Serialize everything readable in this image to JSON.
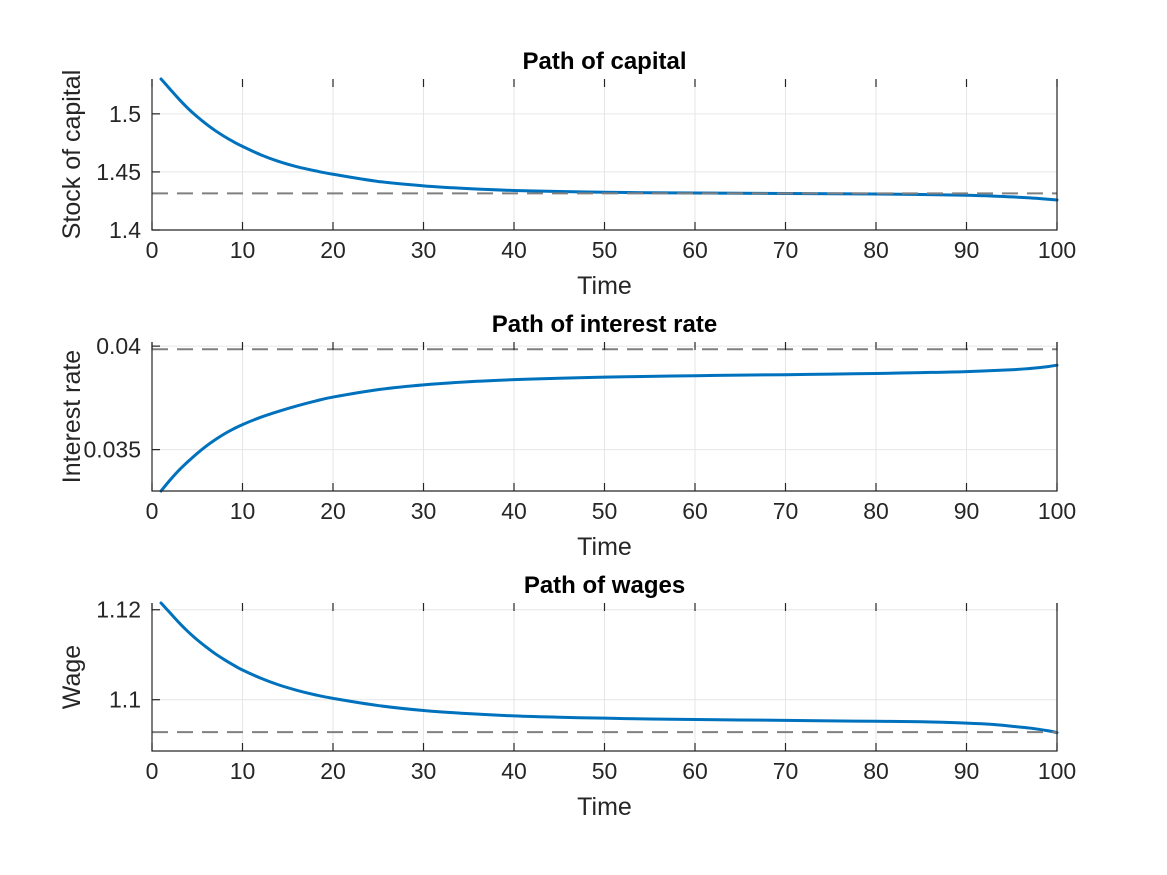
{
  "chart_data": [
    {
      "type": "line",
      "title": "Path of capital",
      "xlabel": "Time",
      "ylabel": "Stock of capital",
      "xlim": [
        0,
        100
      ],
      "ylim": [
        1.4,
        1.53
      ],
      "xticks": [
        0,
        10,
        20,
        30,
        40,
        50,
        60,
        70,
        80,
        90,
        100
      ],
      "xtick_labels": [
        "0",
        "10",
        "20",
        "30",
        "40",
        "50",
        "60",
        "70",
        "80",
        "90",
        "100"
      ],
      "yticks": [
        1.4,
        1.45,
        1.5
      ],
      "ytick_labels": [
        "1.4",
        "1.45",
        "1.5"
      ],
      "grid": true,
      "series": [
        {
          "style": "solid",
          "color": "#0072BD",
          "x": [
            1,
            2,
            3,
            4,
            5,
            6,
            7,
            8,
            9,
            10,
            12,
            14,
            16,
            18,
            20,
            25,
            30,
            35,
            40,
            45,
            50,
            55,
            60,
            65,
            70,
            75,
            80,
            85,
            90,
            93,
            95,
            97,
            98,
            99,
            100
          ],
          "y": [
            1.53,
            1.5212,
            1.5125,
            1.5045,
            1.4975,
            1.4912,
            1.4855,
            1.4805,
            1.476,
            1.472,
            1.4648,
            1.459,
            1.4545,
            1.451,
            1.448,
            1.4418,
            1.438,
            1.4356,
            1.434,
            1.4331,
            1.4325,
            1.4321,
            1.4318,
            1.4316,
            1.4314,
            1.4312,
            1.431,
            1.4306,
            1.4299,
            1.4292,
            1.4285,
            1.4277,
            1.4271,
            1.4265,
            1.4258
          ]
        },
        {
          "style": "dashed",
          "color": "#808080",
          "x": [
            0,
            100
          ],
          "y": [
            1.4315,
            1.4315
          ]
        }
      ]
    },
    {
      "type": "line",
      "title": "Path of interest rate",
      "xlabel": "Time",
      "ylabel": "Interest rate",
      "xlim": [
        0,
        100
      ],
      "ylim": [
        0.033,
        0.0402
      ],
      "xticks": [
        0,
        10,
        20,
        30,
        40,
        50,
        60,
        70,
        80,
        90,
        100
      ],
      "xtick_labels": [
        "0",
        "10",
        "20",
        "30",
        "40",
        "50",
        "60",
        "70",
        "80",
        "90",
        "100"
      ],
      "yticks": [
        0.035,
        0.04
      ],
      "ytick_labels": [
        "0.035",
        "0.04"
      ],
      "grid": true,
      "series": [
        {
          "style": "solid",
          "color": "#0072BD",
          "x": [
            1,
            2,
            3,
            4,
            5,
            6,
            7,
            8,
            9,
            10,
            12,
            14,
            16,
            18,
            20,
            25,
            30,
            35,
            40,
            45,
            50,
            55,
            60,
            65,
            70,
            75,
            80,
            85,
            90,
            95,
            97,
            99,
            100
          ],
          "y": [
            0.033,
            0.03353,
            0.03401,
            0.03443,
            0.03482,
            0.03517,
            0.03548,
            0.03576,
            0.036,
            0.03621,
            0.03656,
            0.03685,
            0.03711,
            0.03734,
            0.03754,
            0.0379,
            0.03813,
            0.03828,
            0.03838,
            0.03845,
            0.0385,
            0.03854,
            0.03857,
            0.0386,
            0.03862,
            0.03865,
            0.03868,
            0.03872,
            0.03877,
            0.03886,
            0.03892,
            0.03901,
            0.03908
          ]
        },
        {
          "style": "dashed",
          "color": "#808080",
          "x": [
            0,
            100
          ],
          "y": [
            0.03985,
            0.03985
          ]
        }
      ]
    },
    {
      "type": "line",
      "title": "Path of wages",
      "xlabel": "Time",
      "ylabel": "Wage",
      "xlim": [
        0,
        100
      ],
      "ylim": [
        1.0886,
        1.1215
      ],
      "xticks": [
        0,
        10,
        20,
        30,
        40,
        50,
        60,
        70,
        80,
        90,
        100
      ],
      "xtick_labels": [
        "0",
        "10",
        "20",
        "30",
        "40",
        "50",
        "60",
        "70",
        "80",
        "90",
        "100"
      ],
      "yticks": [
        1.1,
        1.12
      ],
      "ytick_labels": [
        "1.1",
        "1.12"
      ],
      "grid": true,
      "series": [
        {
          "style": "solid",
          "color": "#0072BD",
          "x": [
            1,
            2,
            3,
            4,
            5,
            6,
            7,
            8,
            9,
            10,
            12,
            14,
            16,
            18,
            20,
            25,
            30,
            35,
            40,
            45,
            50,
            55,
            60,
            65,
            70,
            75,
            80,
            85,
            90,
            93,
            95,
            97,
            99,
            100
          ],
          "y": [
            1.1215,
            1.1193,
            1.1171,
            1.1151,
            1.1133,
            1.1117,
            1.1102,
            1.1089,
            1.1077,
            1.1066,
            1.1048,
            1.1033,
            1.1021,
            1.1011,
            1.1003,
            1.0987,
            1.0976,
            1.0969,
            1.0964,
            1.0961,
            1.0959,
            1.0957,
            1.0956,
            1.0955,
            1.0954,
            1.0953,
            1.0952,
            1.0951,
            1.0948,
            1.0945,
            1.0941,
            1.0937,
            1.0931,
            1.0927
          ]
        },
        {
          "style": "dashed",
          "color": "#808080",
          "x": [
            0,
            100
          ],
          "y": [
            1.0928,
            1.0928
          ]
        }
      ]
    }
  ]
}
